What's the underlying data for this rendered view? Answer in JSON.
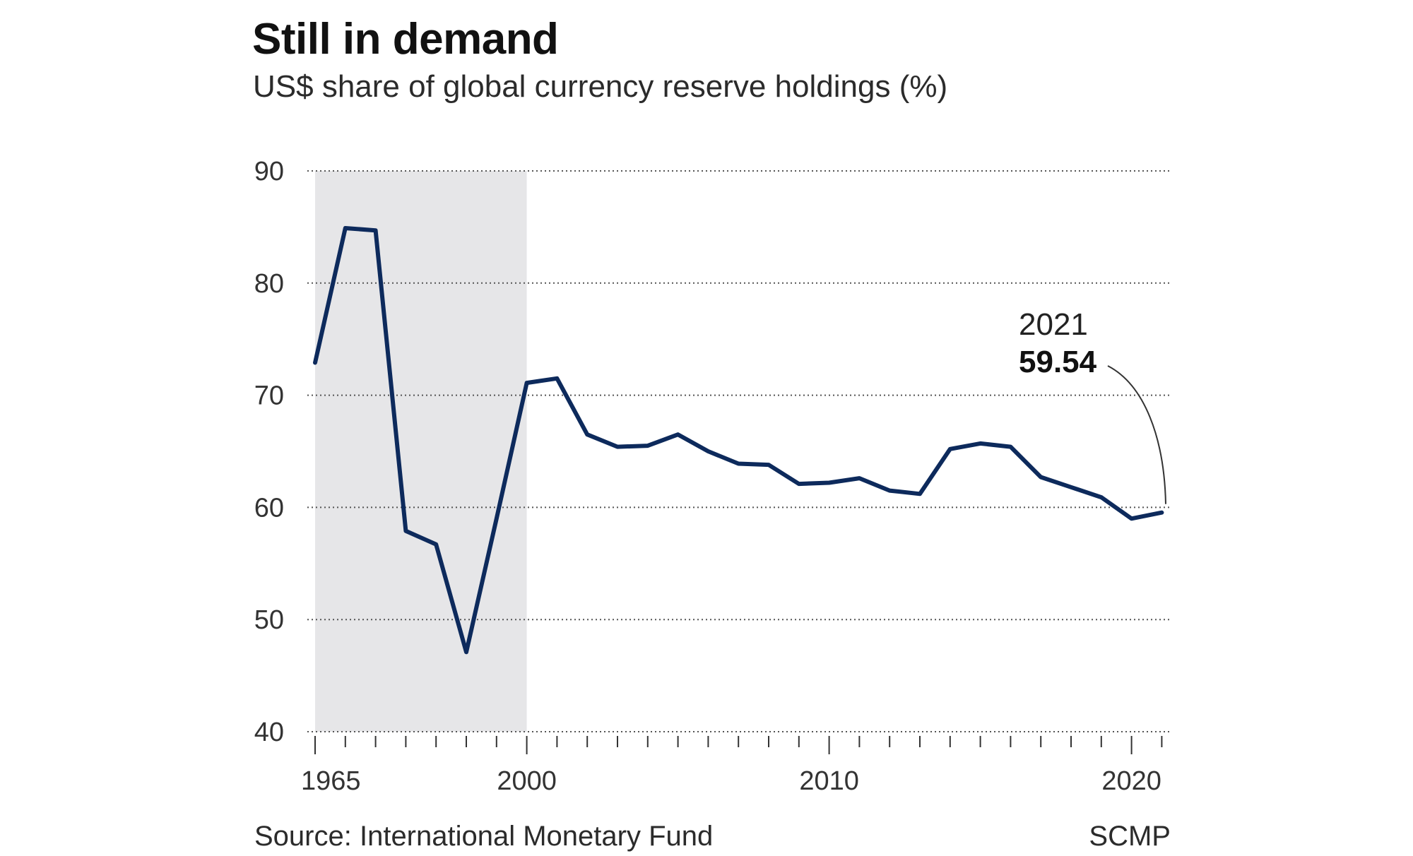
{
  "header": {
    "title": "Still in demand",
    "subtitle": "US$ share of global currency reserve holdings (%)"
  },
  "footer": {
    "source": "Source: International Monetary Fund",
    "credit": "SCMP"
  },
  "colors": {
    "line": "#0d2a5c",
    "shade": "#e6e6e8",
    "grid": "#555555"
  },
  "chart_data": {
    "type": "line",
    "title": "Still in demand",
    "subtitle": "US$ share of global currency reserve holdings (%)",
    "xlabel": "",
    "ylabel": "",
    "ylim": [
      40,
      90
    ],
    "yticks": [
      40,
      50,
      60,
      70,
      80,
      90
    ],
    "grid": "horizontal dotted",
    "x_tick_labels": [
      "1965",
      "2000",
      "2010",
      "2020"
    ],
    "shaded_region": {
      "from": "1965",
      "to": "2000"
    },
    "points": [
      {
        "x": "1965",
        "y": 72.9
      },
      {
        "x": "",
        "y": 84.9
      },
      {
        "x": "",
        "y": 84.7
      },
      {
        "x": "",
        "y": 57.9
      },
      {
        "x": "",
        "y": 56.7
      },
      {
        "x": "",
        "y": 47.1
      },
      {
        "x": "",
        "y": 59.0
      },
      {
        "x": "2000",
        "y": 71.1
      },
      {
        "x": "2001",
        "y": 71.5
      },
      {
        "x": "2002",
        "y": 66.5
      },
      {
        "x": "2003",
        "y": 65.4
      },
      {
        "x": "2004",
        "y": 65.5
      },
      {
        "x": "2005",
        "y": 66.5
      },
      {
        "x": "2006",
        "y": 65.0
      },
      {
        "x": "2007",
        "y": 63.9
      },
      {
        "x": "2008",
        "y": 63.8
      },
      {
        "x": "2009",
        "y": 62.1
      },
      {
        "x": "2010",
        "y": 62.2
      },
      {
        "x": "2011",
        "y": 62.6
      },
      {
        "x": "2012",
        "y": 61.5
      },
      {
        "x": "2013",
        "y": 61.2
      },
      {
        "x": "2014",
        "y": 65.2
      },
      {
        "x": "2015",
        "y": 65.7
      },
      {
        "x": "2016",
        "y": 65.4
      },
      {
        "x": "2017",
        "y": 62.7
      },
      {
        "x": "2018",
        "y": 61.8
      },
      {
        "x": "2019",
        "y": 60.9
      },
      {
        "x": "2020",
        "y": 59.0
      },
      {
        "x": "2021",
        "y": 59.54
      }
    ],
    "annotation": {
      "x": "2021",
      "label": "2021",
      "value": "59.54"
    }
  }
}
